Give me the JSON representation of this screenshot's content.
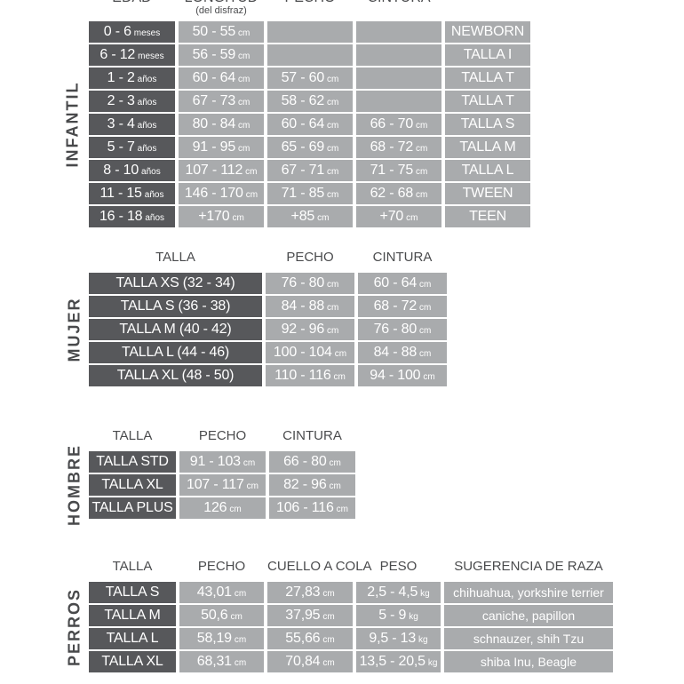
{
  "colors": {
    "background": "#ffffff",
    "cell_dark": "#57585b",
    "cell_light": "#a9abad",
    "cell_text": "#ffffff",
    "header_text": "#4a4b4d",
    "section_label_text": "#48494b"
  },
  "sections": [
    {
      "id": "infantil",
      "label": "INFANTIL",
      "headers": [
        {
          "text": "EDAD"
        },
        {
          "text": "LONGITUD",
          "sub": "(del disfraz)"
        },
        {
          "text": "PECHO"
        },
        {
          "text": "CINTURA"
        },
        {
          "text": ""
        }
      ],
      "rows": [
        [
          {
            "text": "0 - 6",
            "unit": "meses"
          },
          {
            "text": "50 - 55",
            "unit": "cm"
          },
          {
            "text": ""
          },
          {
            "text": ""
          },
          {
            "text": "NEWBORN"
          }
        ],
        [
          {
            "text": "6 - 12",
            "unit": "meses"
          },
          {
            "text": "56 - 59",
            "unit": "cm"
          },
          {
            "text": ""
          },
          {
            "text": ""
          },
          {
            "text": "TALLA I"
          }
        ],
        [
          {
            "text": "1 - 2",
            "unit": "años"
          },
          {
            "text": "60 - 64",
            "unit": "cm"
          },
          {
            "text": "57 - 60",
            "unit": "cm"
          },
          {
            "text": ""
          },
          {
            "text": "TALLA T"
          }
        ],
        [
          {
            "text": "2 - 3",
            "unit": "años"
          },
          {
            "text": "67 - 73",
            "unit": "cm"
          },
          {
            "text": "58 - 62",
            "unit": "cm"
          },
          {
            "text": ""
          },
          {
            "text": "TALLA T"
          }
        ],
        [
          {
            "text": "3 - 4",
            "unit": "años"
          },
          {
            "text": "80 - 84",
            "unit": "cm"
          },
          {
            "text": "60 - 64",
            "unit": "cm"
          },
          {
            "text": "66 - 70",
            "unit": "cm"
          },
          {
            "text": "TALLA S"
          }
        ],
        [
          {
            "text": "5 - 7",
            "unit": "años"
          },
          {
            "text": "91 - 95",
            "unit": "cm"
          },
          {
            "text": "65 - 69",
            "unit": "cm"
          },
          {
            "text": "68 - 72",
            "unit": "cm"
          },
          {
            "text": "TALLA M"
          }
        ],
        [
          {
            "text": "8 - 10",
            "unit": "años"
          },
          {
            "text": "107 - 112",
            "unit": "cm"
          },
          {
            "text": "67 - 71",
            "unit": "cm"
          },
          {
            "text": "71 - 75",
            "unit": "cm"
          },
          {
            "text": "TALLA L"
          }
        ],
        [
          {
            "text": "11 - 15",
            "unit": "años"
          },
          {
            "text": "146 - 170",
            "unit": "cm"
          },
          {
            "text": "71 - 85",
            "unit": "cm"
          },
          {
            "text": "62 - 68",
            "unit": "cm"
          },
          {
            "text": "TWEEN"
          }
        ],
        [
          {
            "text": "16 - 18",
            "unit": "años"
          },
          {
            "text": "+170",
            "unit": "cm"
          },
          {
            "text": "+85",
            "unit": "cm"
          },
          {
            "text": "+70",
            "unit": "cm"
          },
          {
            "text": "TEEN"
          }
        ]
      ]
    },
    {
      "id": "mujer",
      "label": "MUJER",
      "headers": [
        {
          "text": "TALLA"
        },
        {
          "text": "PECHO"
        },
        {
          "text": "CINTURA"
        }
      ],
      "rows": [
        [
          {
            "text": "TALLA XS (32 - 34)"
          },
          {
            "text": "76 - 80",
            "unit": "cm"
          },
          {
            "text": "60 - 64",
            "unit": "cm"
          }
        ],
        [
          {
            "text": "TALLA S (36 - 38)"
          },
          {
            "text": "84 - 88",
            "unit": "cm"
          },
          {
            "text": "68 - 72",
            "unit": "cm"
          }
        ],
        [
          {
            "text": "TALLA M (40 - 42)"
          },
          {
            "text": "92 - 96",
            "unit": "cm"
          },
          {
            "text": "76 - 80",
            "unit": "cm"
          }
        ],
        [
          {
            "text": "TALLA L (44 - 46)"
          },
          {
            "text": "100 - 104",
            "unit": "cm"
          },
          {
            "text": "84 - 88",
            "unit": "cm"
          }
        ],
        [
          {
            "text": "TALLA XL (48 - 50)"
          },
          {
            "text": "110 - 116",
            "unit": "cm"
          },
          {
            "text": "94 - 100",
            "unit": "cm"
          }
        ]
      ]
    },
    {
      "id": "hombre",
      "label": "HOMBRE",
      "headers": [
        {
          "text": "TALLA"
        },
        {
          "text": "PECHO"
        },
        {
          "text": "CINTURA"
        }
      ],
      "rows": [
        [
          {
            "text": "TALLA STD"
          },
          {
            "text": "91 - 103",
            "unit": "cm"
          },
          {
            "text": "66 - 80",
            "unit": "cm"
          }
        ],
        [
          {
            "text": "TALLA XL"
          },
          {
            "text": "107 - 117",
            "unit": "cm"
          },
          {
            "text": "82 - 96",
            "unit": "cm"
          }
        ],
        [
          {
            "text": "TALLA PLUS"
          },
          {
            "text": "126",
            "unit": "cm"
          },
          {
            "text": "106 - 116",
            "unit": "cm"
          }
        ]
      ]
    },
    {
      "id": "perros",
      "label": "PERROS",
      "headers": [
        {
          "text": "TALLA"
        },
        {
          "text": "PECHO"
        },
        {
          "text": "CUELLO A COLA"
        },
        {
          "text": "PESO"
        },
        {
          "text": "SUGERENCIA DE RAZA"
        }
      ],
      "rows": [
        [
          {
            "text": "TALLA S"
          },
          {
            "text": "43,01",
            "unit": "cm"
          },
          {
            "text": "27,83",
            "unit": "cm"
          },
          {
            "text": "2,5 - 4,5",
            "unit": "kg"
          },
          {
            "text": "chihuahua, yorkshire terrier"
          }
        ],
        [
          {
            "text": "TALLA M"
          },
          {
            "text": "50,6",
            "unit": "cm"
          },
          {
            "text": "37,95",
            "unit": "cm"
          },
          {
            "text": "5 - 9",
            "unit": "kg"
          },
          {
            "text": "caniche, papillon"
          }
        ],
        [
          {
            "text": "TALLA L"
          },
          {
            "text": "58,19",
            "unit": "cm"
          },
          {
            "text": "55,66",
            "unit": "cm"
          },
          {
            "text": "9,5 - 13",
            "unit": "kg"
          },
          {
            "text": "schnauzer, shih Tzu"
          }
        ],
        [
          {
            "text": "TALLA XL"
          },
          {
            "text": "68,31",
            "unit": "cm"
          },
          {
            "text": "70,84",
            "unit": "cm"
          },
          {
            "text": "13,5 - 20,5",
            "unit": "kg"
          },
          {
            "text": "shiba Inu, Beagle"
          }
        ]
      ]
    }
  ]
}
